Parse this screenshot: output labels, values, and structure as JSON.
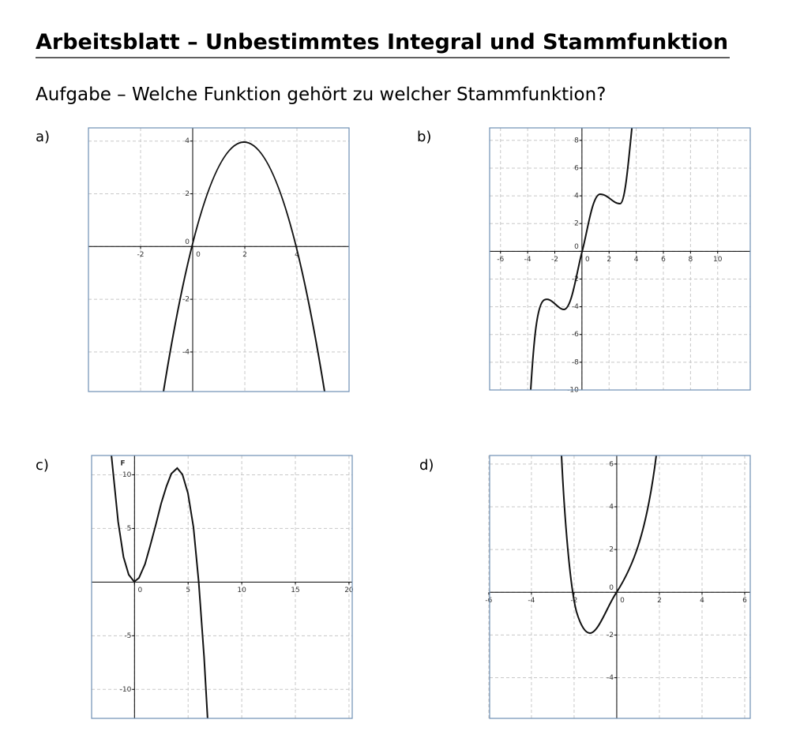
{
  "header": {
    "title": "Arbeitsblatt – Unbestimmtes Integral und Stammfunktion"
  },
  "task": "Aufgabe – Welche Funktion gehört zu welcher Stammfunktion?",
  "graphs": [
    {
      "label": "a)",
      "xlim": [
        -4,
        6
      ],
      "ylim": [
        -5.5,
        4.5
      ],
      "xticks": [
        -2,
        0,
        2,
        4
      ],
      "yticks": [
        4,
        2,
        0,
        -2,
        -4
      ]
    },
    {
      "label": "b)",
      "xlim": [
        -6.8,
        12.4
      ],
      "ylim": [
        -10,
        8.9
      ],
      "xticks": [
        -6,
        -4,
        -2,
        0,
        2,
        4,
        6,
        8,
        10
      ],
      "yticks": [
        8,
        6,
        4,
        2,
        0,
        -2,
        -4,
        -6,
        -8,
        -10
      ]
    },
    {
      "label": "c)",
      "axis_label": "F",
      "xlim": [
        -4,
        20.3
      ],
      "ylim": [
        -12.7,
        11.8
      ],
      "xticks": [
        0,
        5,
        10,
        15,
        20
      ],
      "yticks": [
        10,
        5,
        -5,
        -10
      ]
    },
    {
      "label": "d)",
      "xlim": [
        -5.96,
        6.26
      ],
      "ylim": [
        -5.9,
        6.4
      ],
      "xticks": [
        -6,
        -4,
        -2,
        0,
        2,
        4,
        6
      ],
      "yticks": [
        6,
        4,
        2,
        0,
        -2,
        -4
      ]
    }
  ]
}
